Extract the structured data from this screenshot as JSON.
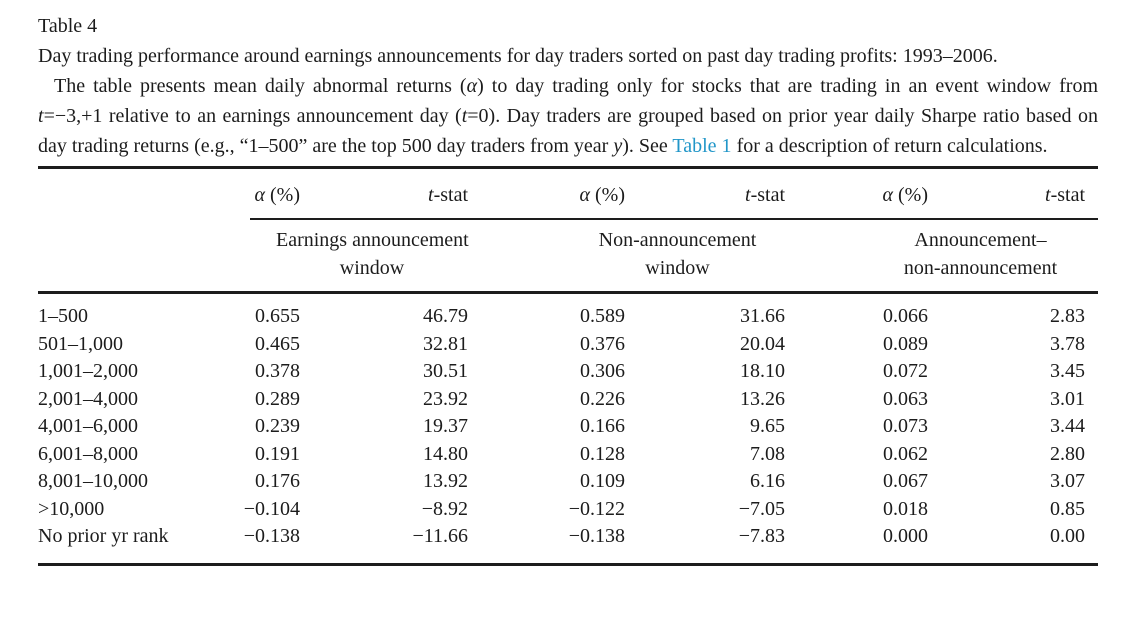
{
  "paper": {
    "table_label": "Table 4",
    "caption": "Day trading performance around earnings announcements for day traders sorted on past day trading profits: 1993–2006.",
    "description": {
      "seg1": "The table presents mean daily abnormal returns (",
      "alpha": "α",
      "seg2": ") to day trading only for stocks that are trading in an event window from ",
      "t1": "t",
      "seg3": "=−3,+1 relative to an earnings announcement day (",
      "t2": "t",
      "seg4": "=0). Day traders are grouped based on prior year daily Sharpe ratio based on day trading returns (e.g., “1–500” are the top 500 day traders from year ",
      "y": "y",
      "seg5": "). See ",
      "link_text": "Table 1",
      "seg6": " for a description of return calculations."
    },
    "link_color": "#2196c8"
  },
  "table": {
    "col_headers": [
      {
        "sym": "α",
        "rest": " (%)"
      },
      {
        "sym": "t",
        "rest": "-stat"
      },
      {
        "sym": "α",
        "rest": " (%)"
      },
      {
        "sym": "t",
        "rest": "-stat"
      },
      {
        "sym": "α",
        "rest": " (%)"
      },
      {
        "sym": "t",
        "rest": "-stat"
      }
    ],
    "groups": [
      {
        "line1": "Earnings announcement",
        "line2": "window"
      },
      {
        "line1": "Non-announcement",
        "line2": "window"
      },
      {
        "line1": "Announcement–",
        "line2": "non-announcement"
      }
    ],
    "rows": [
      {
        "label": "1–500",
        "cells": [
          "0.655",
          "46.79",
          "0.589",
          "31.66",
          "0.066",
          "2.83"
        ]
      },
      {
        "label": "501–1,000",
        "cells": [
          "0.465",
          "32.81",
          "0.376",
          "20.04",
          "0.089",
          "3.78"
        ]
      },
      {
        "label": "1,001–2,000",
        "cells": [
          "0.378",
          "30.51",
          "0.306",
          "18.10",
          "0.072",
          "3.45"
        ]
      },
      {
        "label": "2,001–4,000",
        "cells": [
          "0.289",
          "23.92",
          "0.226",
          "13.26",
          "0.063",
          "3.01"
        ]
      },
      {
        "label": "4,001–6,000",
        "cells": [
          "0.239",
          "19.37",
          "0.166",
          "9.65",
          "0.073",
          "3.44"
        ]
      },
      {
        "label": "6,001–8,000",
        "cells": [
          "0.191",
          "14.80",
          "0.128",
          "7.08",
          "0.062",
          "2.80"
        ]
      },
      {
        "label": "8,001–10,000",
        "cells": [
          "0.176",
          "13.92",
          "0.109",
          "6.16",
          "0.067",
          "3.07"
        ]
      },
      {
        "label": ">10,000",
        "cells": [
          "−0.104",
          "−8.92",
          "−0.122",
          "−7.05",
          "0.018",
          "0.85"
        ]
      },
      {
        "label": "No prior yr rank",
        "cells": [
          "−0.138",
          "−11.66",
          "−0.138",
          "−7.83",
          "0.000",
          "0.00"
        ]
      }
    ]
  }
}
